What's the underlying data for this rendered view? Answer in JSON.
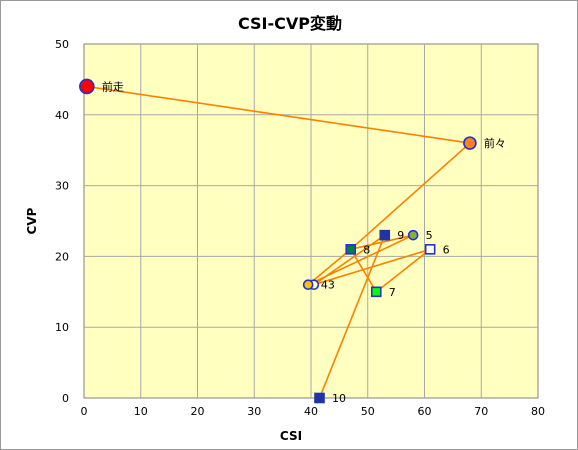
{
  "chart_data": {
    "type": "scatter",
    "title": "CSI-CVP変動",
    "xlabel": "CSI",
    "ylabel": "CVP",
    "xlim": [
      0,
      80
    ],
    "ylim": [
      0,
      50
    ],
    "xticks": [
      0,
      10,
      20,
      30,
      40,
      50,
      60,
      70,
      80
    ],
    "yticks": [
      0,
      10,
      20,
      30,
      40,
      50
    ],
    "grid": true,
    "legend": "none",
    "colors": {
      "plot_background": "#FFFFC0",
      "grid": "#A8A8A8",
      "line": "#FF8000"
    },
    "points": [
      {
        "label": "前走",
        "x": 0.5,
        "y": 44,
        "marker": "circle",
        "fill": "#FF0000",
        "stroke": "#2233CC",
        "size": "large"
      },
      {
        "label": "前々",
        "x": 68,
        "y": 36,
        "marker": "circle",
        "fill": "#FF8020",
        "stroke": "#2233CC",
        "size": "medium"
      },
      {
        "label": "3",
        "x": 40.5,
        "y": 16,
        "marker": "circle",
        "fill": "#FFFFC0",
        "stroke": "#2233CC",
        "size": "small"
      },
      {
        "label": "4",
        "x": 39.5,
        "y": 16,
        "marker": "circle",
        "fill": "#FFC000",
        "stroke": "#2233CC",
        "size": "small"
      },
      {
        "label": "5",
        "x": 58,
        "y": 23,
        "marker": "circle",
        "fill": "#88B040",
        "stroke": "#2233CC",
        "size": "small"
      },
      {
        "label": "6",
        "x": 61,
        "y": 21,
        "marker": "square",
        "fill": "#FFFFFF",
        "stroke": "#2233CC",
        "size": "small"
      },
      {
        "label": "7",
        "x": 51.5,
        "y": 15,
        "marker": "square",
        "fill": "#00FF00",
        "stroke": "#2233CC",
        "size": "small"
      },
      {
        "label": "8",
        "x": 47,
        "y": 21,
        "marker": "square",
        "fill": "#008040",
        "stroke": "#2233CC",
        "size": "small"
      },
      {
        "label": "9",
        "x": 53,
        "y": 23,
        "marker": "square",
        "fill": "#2233AA",
        "stroke": "#2233AA",
        "size": "small"
      },
      {
        "label": "10",
        "x": 41.5,
        "y": 0,
        "marker": "square",
        "fill": "#2233AA",
        "stroke": "#2233AA",
        "size": "small"
      }
    ],
    "path_order": [
      "前走",
      "前々",
      "8",
      "4",
      "5",
      "8",
      "7",
      "6",
      "3",
      "9",
      "10"
    ]
  }
}
